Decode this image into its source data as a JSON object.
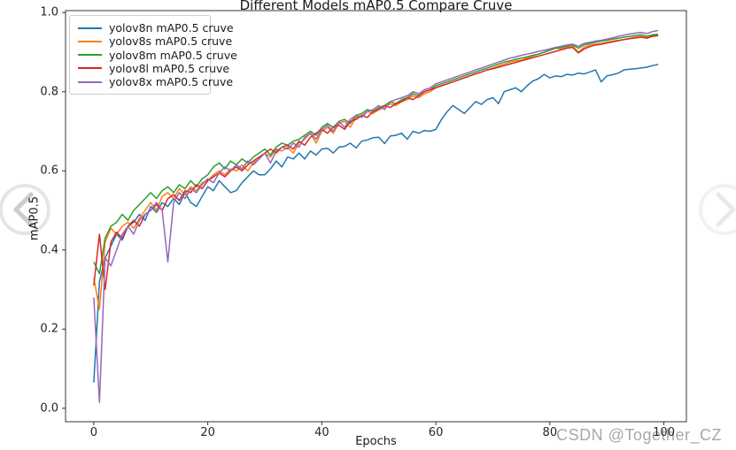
{
  "page": {
    "background": "#ffffff"
  },
  "watermark": {
    "text": "CSDN @Together_CZ",
    "color": "#a8a8a8"
  },
  "carousel": {
    "prev_icon": "chevron-left-circle",
    "next_icon": "chevron-right-circle"
  },
  "chart_data": {
    "type": "line",
    "title": "Different Models mAP0.5 Compare Cruve",
    "xlabel": "Epochs",
    "ylabel": "mAP0.5",
    "grid": false,
    "legend_position": "upper left",
    "xlim": [
      -4.95,
      103.95
    ],
    "ylim": [
      -0.034,
      1.005
    ],
    "xticks": [
      {
        "v": 0,
        "label": "0"
      },
      {
        "v": 20,
        "label": "20"
      },
      {
        "v": 40,
        "label": "40"
      },
      {
        "v": 60,
        "label": "60"
      },
      {
        "v": 80,
        "label": "80"
      },
      {
        "v": 100,
        "label": "100"
      }
    ],
    "yticks": [
      {
        "v": 0.0,
        "label": "0.0"
      },
      {
        "v": 0.2,
        "label": "0.2"
      },
      {
        "v": 0.4,
        "label": "0.4"
      },
      {
        "v": 0.6,
        "label": "0.6"
      },
      {
        "v": 0.8,
        "label": "0.8"
      },
      {
        "v": 1.0,
        "label": "1.0"
      }
    ],
    "x_unit": "epoch index 0-99",
    "series": [
      {
        "name": "yolov8n mAP0.5 cruve",
        "color": "#1f77b4",
        "values": [
          0.065,
          0.32,
          0.38,
          0.41,
          0.44,
          0.425,
          0.46,
          0.47,
          0.49,
          0.475,
          0.51,
          0.495,
          0.52,
          0.51,
          0.53,
          0.515,
          0.545,
          0.52,
          0.51,
          0.535,
          0.56,
          0.55,
          0.575,
          0.56,
          0.545,
          0.55,
          0.57,
          0.585,
          0.6,
          0.59,
          0.59,
          0.605,
          0.625,
          0.61,
          0.635,
          0.63,
          0.645,
          0.63,
          0.65,
          0.64,
          0.655,
          0.657,
          0.645,
          0.66,
          0.662,
          0.67,
          0.658,
          0.675,
          0.678,
          0.684,
          0.685,
          0.669,
          0.688,
          0.69,
          0.695,
          0.68,
          0.7,
          0.695,
          0.702,
          0.7,
          0.705,
          0.73,
          0.75,
          0.765,
          0.755,
          0.745,
          0.76,
          0.775,
          0.768,
          0.78,
          0.785,
          0.77,
          0.8,
          0.805,
          0.81,
          0.8,
          0.815,
          0.827,
          0.833,
          0.844,
          0.835,
          0.84,
          0.838,
          0.844,
          0.842,
          0.847,
          0.845,
          0.85,
          0.855,
          0.825,
          0.84,
          0.843,
          0.847,
          0.855,
          0.857,
          0.858,
          0.86,
          0.862,
          0.866,
          0.869
        ]
      },
      {
        "name": "yolov8s mAP0.5 cruve",
        "color": "#ff7f0e",
        "values": [
          0.33,
          0.25,
          0.42,
          0.455,
          0.44,
          0.46,
          0.47,
          0.455,
          0.48,
          0.5,
          0.52,
          0.5,
          0.535,
          0.545,
          0.53,
          0.555,
          0.54,
          0.56,
          0.55,
          0.57,
          0.575,
          0.59,
          0.6,
          0.59,
          0.605,
          0.6,
          0.615,
          0.6,
          0.62,
          0.63,
          0.645,
          0.635,
          0.655,
          0.65,
          0.66,
          0.645,
          0.67,
          0.68,
          0.695,
          0.67,
          0.7,
          0.71,
          0.695,
          0.72,
          0.725,
          0.71,
          0.735,
          0.74,
          0.75,
          0.745,
          0.755,
          0.76,
          0.77,
          0.765,
          0.775,
          0.78,
          0.79,
          0.785,
          0.795,
          0.8,
          0.81,
          0.815,
          0.82,
          0.825,
          0.83,
          0.835,
          0.84,
          0.845,
          0.85,
          0.855,
          0.86,
          0.865,
          0.87,
          0.875,
          0.878,
          0.88,
          0.885,
          0.89,
          0.895,
          0.9,
          0.905,
          0.91,
          0.908,
          0.912,
          0.915,
          0.9,
          0.912,
          0.918,
          0.92,
          0.922,
          0.925,
          0.928,
          0.93,
          0.932,
          0.935,
          0.938,
          0.94,
          0.937,
          0.942,
          0.945
        ]
      },
      {
        "name": "yolov8m mAP0.5 cruve",
        "color": "#2ca02c",
        "values": [
          0.37,
          0.34,
          0.43,
          0.46,
          0.47,
          0.49,
          0.475,
          0.5,
          0.515,
          0.53,
          0.545,
          0.53,
          0.55,
          0.56,
          0.545,
          0.565,
          0.555,
          0.575,
          0.56,
          0.58,
          0.59,
          0.61,
          0.62,
          0.605,
          0.625,
          0.615,
          0.63,
          0.62,
          0.635,
          0.645,
          0.655,
          0.64,
          0.66,
          0.67,
          0.665,
          0.675,
          0.68,
          0.69,
          0.7,
          0.69,
          0.71,
          0.72,
          0.71,
          0.725,
          0.73,
          0.72,
          0.74,
          0.745,
          0.755,
          0.75,
          0.76,
          0.765,
          0.775,
          0.77,
          0.78,
          0.785,
          0.795,
          0.79,
          0.8,
          0.805,
          0.815,
          0.82,
          0.825,
          0.83,
          0.835,
          0.84,
          0.845,
          0.85,
          0.855,
          0.86,
          0.865,
          0.87,
          0.875,
          0.878,
          0.882,
          0.885,
          0.888,
          0.892,
          0.895,
          0.9,
          0.905,
          0.91,
          0.912,
          0.915,
          0.918,
          0.91,
          0.918,
          0.922,
          0.925,
          0.928,
          0.93,
          0.933,
          0.935,
          0.938,
          0.94,
          0.942,
          0.944,
          0.94,
          0.944,
          0.945
        ]
      },
      {
        "name": "yolov8l mAP0.5 cruve",
        "color": "#d62728",
        "values": [
          0.31,
          0.44,
          0.3,
          0.42,
          0.445,
          0.43,
          0.46,
          0.475,
          0.46,
          0.49,
          0.5,
          0.515,
          0.5,
          0.53,
          0.54,
          0.525,
          0.55,
          0.545,
          0.565,
          0.555,
          0.575,
          0.585,
          0.595,
          0.585,
          0.6,
          0.61,
          0.6,
          0.615,
          0.625,
          0.635,
          0.645,
          0.655,
          0.645,
          0.66,
          0.665,
          0.655,
          0.675,
          0.665,
          0.685,
          0.695,
          0.705,
          0.695,
          0.71,
          0.715,
          0.705,
          0.725,
          0.73,
          0.74,
          0.735,
          0.75,
          0.755,
          0.765,
          0.76,
          0.77,
          0.775,
          0.785,
          0.78,
          0.79,
          0.8,
          0.805,
          0.81,
          0.815,
          0.82,
          0.825,
          0.83,
          0.835,
          0.84,
          0.845,
          0.85,
          0.855,
          0.858,
          0.862,
          0.866,
          0.87,
          0.874,
          0.878,
          0.882,
          0.886,
          0.89,
          0.894,
          0.898,
          0.902,
          0.906,
          0.91,
          0.912,
          0.898,
          0.908,
          0.914,
          0.918,
          0.92,
          0.923,
          0.926,
          0.929,
          0.932,
          0.934,
          0.936,
          0.938,
          0.935,
          0.94,
          0.942
        ]
      },
      {
        "name": "yolov8x mAP0.5 cruve",
        "color": "#9467bd",
        "values": [
          0.28,
          0.015,
          0.38,
          0.36,
          0.4,
          0.44,
          0.46,
          0.44,
          0.475,
          0.49,
          0.5,
          0.52,
          0.5,
          0.37,
          0.52,
          0.545,
          0.53,
          0.555,
          0.545,
          0.565,
          0.58,
          0.57,
          0.595,
          0.61,
          0.6,
          0.615,
          0.605,
          0.625,
          0.615,
          0.63,
          0.645,
          0.62,
          0.65,
          0.66,
          0.655,
          0.67,
          0.66,
          0.685,
          0.695,
          0.68,
          0.705,
          0.715,
          0.7,
          0.725,
          0.71,
          0.73,
          0.74,
          0.735,
          0.75,
          0.755,
          0.765,
          0.755,
          0.775,
          0.78,
          0.785,
          0.79,
          0.8,
          0.795,
          0.805,
          0.81,
          0.82,
          0.825,
          0.83,
          0.835,
          0.84,
          0.845,
          0.85,
          0.855,
          0.86,
          0.865,
          0.87,
          0.875,
          0.88,
          0.885,
          0.888,
          0.892,
          0.895,
          0.898,
          0.902,
          0.905,
          0.908,
          0.912,
          0.915,
          0.918,
          0.92,
          0.915,
          0.922,
          0.925,
          0.928,
          0.93,
          0.933,
          0.936,
          0.94,
          0.943,
          0.946,
          0.948,
          0.95,
          0.947,
          0.952,
          0.955
        ]
      }
    ]
  }
}
